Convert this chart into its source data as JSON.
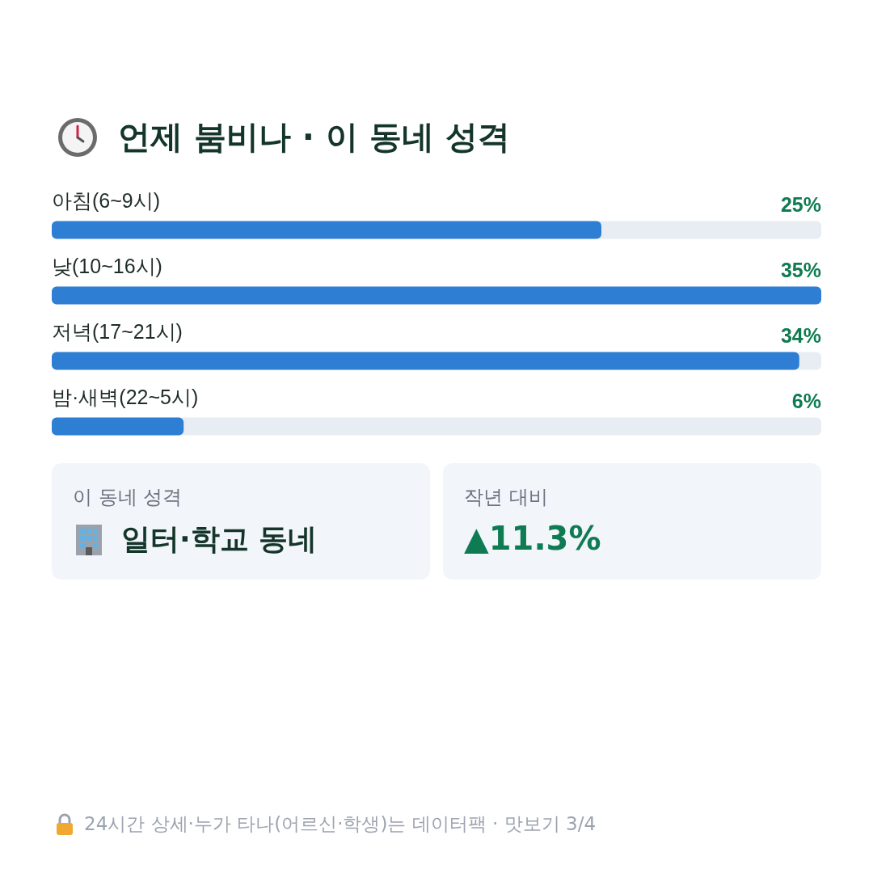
{
  "chart_data": {
    "type": "bar",
    "orientation": "horizontal",
    "title": "언제 붐비나 · 이 동네 성격",
    "categories": [
      "아침(6~9시)",
      "낮(10~16시)",
      "저녁(17~21시)",
      "밤·새벽(22~5시)"
    ],
    "values": [
      25,
      35,
      34,
      6
    ],
    "color": "#2e7fd4",
    "value_labels": [
      "25%",
      "35%",
      "34%",
      "6%"
    ],
    "annotations": [
      "이 동네 성격",
      "일터·학교 동네",
      "작년 대비",
      "▲11.3%",
      "24시간 상세·누가 타나(어르신·학생)는 데이터팩 · 맛보기 3/4"
    ]
  }
}
